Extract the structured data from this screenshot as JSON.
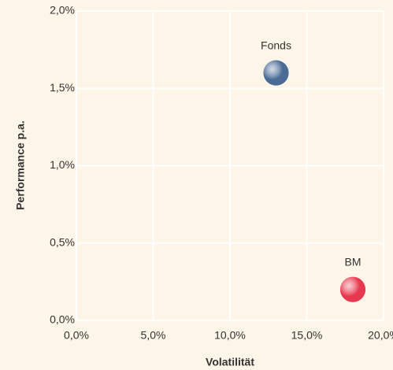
{
  "chart_data": {
    "type": "scatter",
    "xlabel": "Volatilität",
    "ylabel": "Performance p.a.",
    "xlim": [
      0,
      20
    ],
    "ylim": [
      0,
      2
    ],
    "xticks": [
      {
        "value": 0,
        "label": "0,0%"
      },
      {
        "value": 5,
        "label": "5,0%"
      },
      {
        "value": 10,
        "label": "10,0%"
      },
      {
        "value": 15,
        "label": "15,0%"
      },
      {
        "value": 20,
        "label": "20,0%"
      }
    ],
    "yticks": [
      {
        "value": 0,
        "label": "0,0%"
      },
      {
        "value": 0.5,
        "label": "0,5%"
      },
      {
        "value": 1,
        "label": "1,0%"
      },
      {
        "value": 1.5,
        "label": "1,5%"
      },
      {
        "value": 2,
        "label": "2,0%"
      }
    ],
    "grid": true,
    "series": [
      {
        "name": "Fonds",
        "color": "#4a6b96",
        "x": [
          13.0
        ],
        "values": [
          1.6
        ]
      },
      {
        "name": "BM",
        "color": "#e8384f",
        "x": [
          18.0
        ],
        "values": [
          0.2
        ]
      }
    ]
  }
}
